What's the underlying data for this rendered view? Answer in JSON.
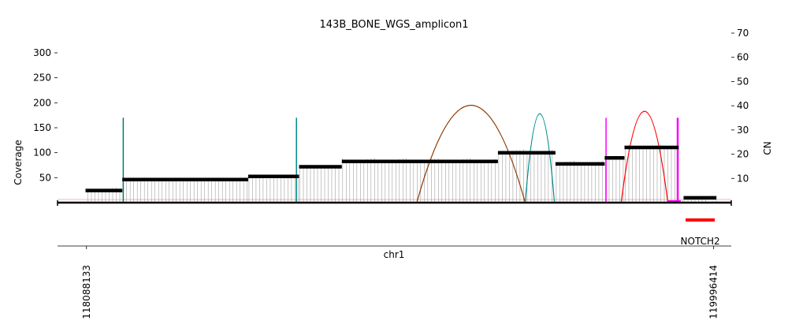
{
  "chart_data": {
    "type": "amplicon-coverage",
    "title": "143B_BONE_WGS_amplicon1",
    "xlabel": "chr1",
    "ylabel_left": "Coverage",
    "ylabel_right": "CN",
    "xlim": [
      118000000,
      120050000
    ],
    "ylim_left": [
      0,
      330
    ],
    "ylim_right": [
      0,
      70
    ],
    "x_ticks": [
      118088133,
      119996414
    ],
    "x_tick_labels": [
      "118088133",
      "119996414"
    ],
    "y_left_ticks": [
      50,
      100,
      150,
      200,
      250,
      300
    ],
    "y_left_tick_labels": [
      "50",
      "100",
      "150",
      "200",
      "250",
      "300"
    ],
    "y_right_ticks": [
      10,
      20,
      30,
      40,
      50,
      60,
      70
    ],
    "y_right_tick_labels": [
      "10",
      "20",
      "30",
      "40",
      "50",
      "60",
      "70"
    ],
    "grid": false,
    "colors": {
      "segment": "#000000",
      "coverage": "#a0a0a0",
      "baseline": "#e87070",
      "gene": "#ff0000"
    },
    "cn_segments": [
      {
        "start": 118085000,
        "end": 118197000,
        "cn": 5.0
      },
      {
        "start": 118197000,
        "end": 118580000,
        "cn": 9.5
      },
      {
        "start": 118580000,
        "end": 118735000,
        "cn": 10.8
      },
      {
        "start": 118735000,
        "end": 118865000,
        "cn": 14.8
      },
      {
        "start": 118865000,
        "end": 119340000,
        "cn": 17.0
      },
      {
        "start": 119340000,
        "end": 119515000,
        "cn": 20.6
      },
      {
        "start": 119515000,
        "end": 119665000,
        "cn": 16.0
      },
      {
        "start": 119665000,
        "end": 119725000,
        "cn": 18.5
      },
      {
        "start": 119725000,
        "end": 119890000,
        "cn": 22.8
      },
      {
        "start": 119905000,
        "end": 120005000,
        "cn": 2.0
      }
    ],
    "coverage_regions": [
      {
        "start": 118090000,
        "end": 118197000,
        "coverage": 26
      },
      {
        "start": 118197000,
        "end": 118580000,
        "coverage": 46
      },
      {
        "start": 118580000,
        "end": 118735000,
        "coverage": 52
      },
      {
        "start": 118735000,
        "end": 118865000,
        "coverage": 72
      },
      {
        "start": 118865000,
        "end": 119340000,
        "coverage": 85
      },
      {
        "start": 119340000,
        "end": 119515000,
        "coverage": 103
      },
      {
        "start": 119515000,
        "end": 119665000,
        "coverage": 80
      },
      {
        "start": 119665000,
        "end": 119725000,
        "coverage": 90
      },
      {
        "start": 119725000,
        "end": 119890000,
        "coverage": 112
      },
      {
        "start": 119890000,
        "end": 119905000,
        "coverage": 8
      },
      {
        "start": 119905000,
        "end": 120005000,
        "coverage": 6
      }
    ],
    "breakpoints": [
      {
        "type": "spike",
        "pos1": 118200000,
        "pos2": 118200000,
        "height": 170,
        "color": "#007a6e"
      },
      {
        "type": "spike",
        "pos1": 118727000,
        "pos2": 118727000,
        "height": 170,
        "color": "#008b8b"
      },
      {
        "type": "arc",
        "pos1": 119093000,
        "pos2": 119423000,
        "height": 195,
        "color": "#8b3a00"
      },
      {
        "type": "arc",
        "pos1": 119423000,
        "pos2": 119512000,
        "height": 178,
        "color": "#008b8b"
      },
      {
        "type": "spike",
        "pos1": 119669000,
        "pos2": 119669000,
        "height": 170,
        "color": "#ff00ff"
      },
      {
        "type": "arc",
        "pos1": 119715000,
        "pos2": 119857000,
        "height": 183,
        "color": "#ff0000"
      },
      {
        "type": "spike",
        "pos1": 119887000,
        "pos2": 119887000,
        "height": 170,
        "color": "#ff00ff"
      }
    ],
    "genes": [
      {
        "name": "NOTCH2",
        "start": 119911000,
        "end": 120000000
      }
    ]
  }
}
